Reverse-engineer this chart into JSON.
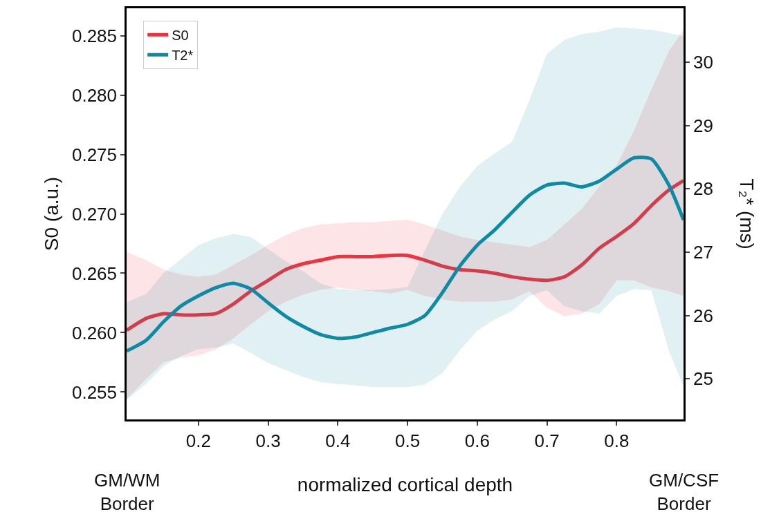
{
  "chart_data": {
    "type": "line",
    "x": [
      0.097,
      0.125,
      0.15,
      0.175,
      0.2,
      0.225,
      0.25,
      0.275,
      0.3,
      0.325,
      0.35,
      0.375,
      0.4,
      0.425,
      0.45,
      0.475,
      0.5,
      0.525,
      0.55,
      0.575,
      0.6,
      0.625,
      0.65,
      0.675,
      0.7,
      0.725,
      0.75,
      0.775,
      0.8,
      0.825,
      0.85,
      0.875,
      0.896
    ],
    "series": [
      {
        "name": "T2*",
        "color": "#0f8aa5",
        "axis": "y2",
        "values": [
          25.44,
          25.61,
          25.9,
          26.15,
          26.31,
          26.44,
          26.51,
          26.42,
          26.2,
          25.99,
          25.83,
          25.7,
          25.64,
          25.66,
          25.73,
          25.8,
          25.86,
          26.0,
          26.36,
          26.78,
          27.11,
          27.35,
          27.63,
          27.9,
          28.06,
          28.09,
          28.03,
          28.12,
          28.31,
          28.49,
          28.47,
          28.06,
          27.51
        ],
        "upper": [
          26.21,
          26.34,
          26.67,
          26.89,
          27.11,
          27.22,
          27.29,
          27.24,
          27.05,
          26.86,
          26.7,
          26.51,
          26.42,
          26.4,
          26.4,
          26.42,
          26.45,
          27.03,
          27.6,
          28.03,
          28.36,
          28.56,
          28.74,
          29.4,
          30.13,
          30.35,
          30.44,
          30.48,
          30.55,
          30.53,
          30.51,
          30.46,
          30.41
        ],
        "lower": [
          24.67,
          24.92,
          25.2,
          25.36,
          25.47,
          25.49,
          25.56,
          25.41,
          25.25,
          25.14,
          25.03,
          24.95,
          24.92,
          24.9,
          24.87,
          24.87,
          24.87,
          24.91,
          25.09,
          25.45,
          25.76,
          25.94,
          26.07,
          26.31,
          26.4,
          26.15,
          26.07,
          26.03,
          26.31,
          26.42,
          26.4,
          25.44,
          24.89
        ]
      },
      {
        "name": "S0",
        "color": "#f0323f",
        "values": [
          0.2602,
          0.2612,
          0.2616,
          0.2615,
          0.2615,
          0.2616,
          0.2624,
          0.2635,
          0.2644,
          0.2653,
          0.2658,
          0.2661,
          0.2664,
          0.2664,
          0.2664,
          0.2665,
          0.2665,
          0.2661,
          0.2656,
          0.2653,
          0.2652,
          0.265,
          0.2647,
          0.2645,
          0.2644,
          0.2647,
          0.2657,
          0.2671,
          0.2681,
          0.2692,
          0.2707,
          0.272,
          0.2728
        ],
        "upper": [
          0.2668,
          0.2661,
          0.2653,
          0.2649,
          0.2647,
          0.2649,
          0.2657,
          0.2665,
          0.2674,
          0.2682,
          0.2688,
          0.2691,
          0.2692,
          0.2693,
          0.2693,
          0.2694,
          0.2695,
          0.2691,
          0.2686,
          0.2681,
          0.2678,
          0.2676,
          0.2674,
          0.2672,
          0.2678,
          0.2691,
          0.2704,
          0.2723,
          0.2741,
          0.277,
          0.2805,
          0.2837,
          0.2855
        ],
        "lower": [
          0.2544,
          0.2561,
          0.2575,
          0.2579,
          0.2581,
          0.2586,
          0.2595,
          0.2607,
          0.2618,
          0.2626,
          0.2632,
          0.2636,
          0.2638,
          0.2636,
          0.2635,
          0.2633,
          0.2636,
          0.2631,
          0.2628,
          0.2626,
          0.2626,
          0.2626,
          0.2628,
          0.2635,
          0.2621,
          0.2614,
          0.2616,
          0.2624,
          0.2644,
          0.2644,
          0.2638,
          0.2635,
          0.2631
        ]
      }
    ],
    "xlabel": "normalized cortical depth",
    "ylabel": "S0 (a.u.)",
    "y2label": "T₂* (ms)",
    "annotations": [
      "GM/WM\nBorder",
      "GM/CSF\nBorder"
    ],
    "xlim": [
      0.097,
      0.896
    ],
    "xticks": [
      0.2,
      0.3,
      0.4,
      0.5,
      0.6,
      0.7,
      0.8
    ],
    "ylim": [
      0.2527,
      0.2873
    ],
    "yticks": [
      0.255,
      {
        "value": 0.26,
        "label": "0.260"
      },
      0.265,
      {
        "value": 0.27,
        "label": "0.270"
      },
      0.275,
      {
        "value": 0.28,
        "label": "0.280"
      },
      0.285
    ],
    "y2lim": [
      24.36,
      30.85
    ],
    "y2ticks": [
      25,
      26,
      27,
      28,
      29,
      30
    ],
    "grid": false,
    "legend": "top left",
    "line_style": "solid"
  }
}
